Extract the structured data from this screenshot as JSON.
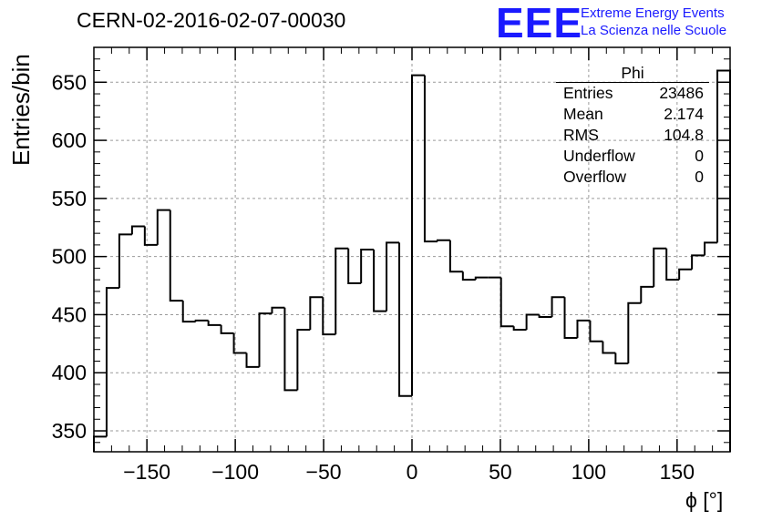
{
  "header": {
    "title": "CERN-02-2016-02-07-00030",
    "logo_text": "EEE",
    "logo_line1": "Extreme Energy Events",
    "logo_line2": "La Scienza nelle Scuole"
  },
  "stats_box": {
    "title": "Phi",
    "rows": [
      {
        "label": "Entries",
        "value": "23486"
      },
      {
        "label": "Mean",
        "value": "2.174"
      },
      {
        "label": "RMS",
        "value": "104.8"
      },
      {
        "label": "Underflow",
        "value": "0"
      },
      {
        "label": "Overflow",
        "value": "0"
      }
    ]
  },
  "chart_data": {
    "type": "histogram",
    "xlabel": "ϕ [°]",
    "ylabel": "Entries/bin",
    "xlim": [
      -180,
      180
    ],
    "ylim": [
      332,
      680
    ],
    "grid": true,
    "bin_width": 7.2,
    "x_ticks": [
      -150,
      -100,
      -50,
      0,
      50,
      100,
      150
    ],
    "x_tick_labels": [
      "−150",
      "−100",
      "−50",
      "0",
      "50",
      "100",
      "150"
    ],
    "y_ticks": [
      350,
      400,
      450,
      500,
      550,
      600,
      650
    ],
    "y_tick_labels": [
      "350",
      "400",
      "450",
      "500",
      "550",
      "600",
      "650"
    ],
    "bin_centers": [
      -176.4,
      -169.2,
      -162,
      -154.8,
      -147.6,
      -140.4,
      -133.2,
      -126,
      -118.8,
      -111.6,
      -104.4,
      -97.2,
      -90,
      -82.8,
      -75.6,
      -68.4,
      -61.2,
      -54,
      -46.8,
      -39.6,
      -32.4,
      -25.2,
      -18,
      -10.8,
      -3.6,
      3.6,
      10.8,
      18,
      25.2,
      32.4,
      39.6,
      46.8,
      54,
      61.2,
      68.4,
      75.6,
      82.8,
      90,
      97.2,
      104.4,
      111.6,
      118.8,
      126,
      133.2,
      140.4,
      147.6,
      154.8,
      162,
      169.2,
      176.4
    ],
    "values": [
      345,
      473,
      519,
      526,
      510,
      540,
      462,
      444,
      445,
      441,
      434,
      417,
      405,
      451,
      456,
      385,
      437,
      465,
      433,
      507,
      477,
      506,
      453,
      512,
      380,
      656,
      513,
      514,
      487,
      480,
      482,
      482,
      440,
      437,
      450,
      448,
      465,
      430,
      445,
      427,
      417,
      408,
      460,
      474,
      507,
      480,
      489,
      501,
      512,
      660
    ]
  }
}
